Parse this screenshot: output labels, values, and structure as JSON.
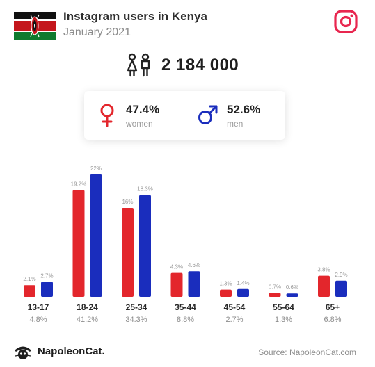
{
  "header": {
    "title": "Instagram users in Kenya",
    "subtitle": "January 2021"
  },
  "total_users": "2 184 000",
  "gender": {
    "women_pct": "47.4%",
    "women_label": "women",
    "men_pct": "52.6%",
    "men_label": "men"
  },
  "colors": {
    "women": "#e3262c",
    "men": "#1a2dbd",
    "instagram": "#e8264f"
  },
  "icons": {
    "flag": "kenya-flag-icon",
    "instagram": "instagram-icon",
    "users": "people-icon",
    "female": "female-symbol-icon",
    "male": "male-symbol-icon",
    "logo": "napoleoncat-logo-icon"
  },
  "chart_data": {
    "type": "bar",
    "categories": [
      "13-17",
      "18-24",
      "25-34",
      "35-44",
      "45-54",
      "55-64",
      "65+"
    ],
    "category_totals": [
      "4.8%",
      "41.2%",
      "34.3%",
      "8.8%",
      "2.7%",
      "1.3%",
      "6.8%"
    ],
    "series": [
      {
        "name": "women",
        "values": [
          2.1,
          19.2,
          16,
          4.3,
          1.3,
          0.7,
          3.8
        ],
        "labels": [
          "2.1%",
          "19.2%",
          "16%",
          "4.3%",
          "1.3%",
          "0.7%",
          "3.8%"
        ]
      },
      {
        "name": "men",
        "values": [
          2.7,
          22,
          18.3,
          4.6,
          1.4,
          0.6,
          2.9
        ],
        "labels": [
          "2.7%",
          "22%",
          "18.3%",
          "4.6%",
          "1.4%",
          "0.6%",
          "2.9%"
        ]
      }
    ],
    "ylim": [
      0,
      22
    ],
    "grid": false,
    "legend": "none"
  },
  "footer": {
    "brand": "NapoleonCat.",
    "source": "Source: NapoleonCat.com"
  }
}
